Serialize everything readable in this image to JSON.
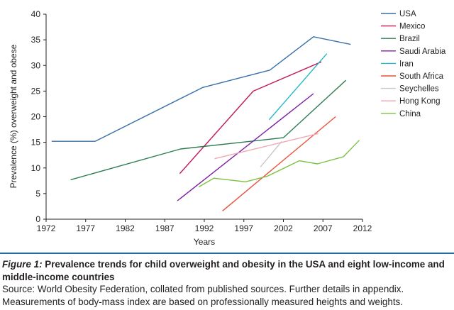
{
  "chart_data": {
    "type": "line",
    "xlabel": "Years",
    "ylabel": "Prevalence (%) overweight and obese",
    "xlim": [
      1972,
      2012
    ],
    "ylim": [
      0,
      40
    ],
    "x_ticks": [
      "1972",
      "1977",
      "1982",
      "1987",
      "1992",
      "1997",
      "2002",
      "2007",
      "2012"
    ],
    "y_ticks": [
      "0",
      "5",
      "10",
      "15",
      "20",
      "25",
      "30",
      "35",
      "40"
    ],
    "grid": false,
    "legend_position": "top-right",
    "series": [
      {
        "name": "USA",
        "color": "#3a6fa8",
        "points": [
          [
            1972.7,
            15.2
          ],
          [
            1978.2,
            15.2
          ],
          [
            1991.8,
            25.7
          ],
          [
            2000.3,
            29.1
          ],
          [
            2005.8,
            35.6
          ],
          [
            2010.5,
            34.1
          ]
        ]
      },
      {
        "name": "Mexico",
        "color": "#c2185b",
        "points": [
          [
            1988.9,
            8.9
          ],
          [
            1998.2,
            25.0
          ],
          [
            2006.8,
            30.7
          ]
        ]
      },
      {
        "name": "Brazil",
        "color": "#2e7d52",
        "points": [
          [
            1975.1,
            7.7
          ],
          [
            1989.0,
            13.7
          ],
          [
            2002.0,
            15.9
          ],
          [
            2009.9,
            27.1
          ]
        ]
      },
      {
        "name": "Saudi Arabia",
        "color": "#7b1fa2",
        "points": [
          [
            1988.6,
            3.6
          ],
          [
            2005.8,
            24.5
          ]
        ]
      },
      {
        "name": "Iran",
        "color": "#26b8c8",
        "points": [
          [
            2000.2,
            19.4
          ],
          [
            2007.5,
            32.3
          ]
        ]
      },
      {
        "name": "South Africa",
        "color": "#e8503a",
        "points": [
          [
            1994.3,
            1.6
          ],
          [
            2008.6,
            20.0
          ]
        ]
      },
      {
        "name": "Seychelles",
        "color": "#c8c8c8",
        "points": [
          [
            1999.1,
            10.2
          ],
          [
            2001.8,
            15.2
          ]
        ]
      },
      {
        "name": "Hong Kong",
        "color": "#f2a6b4",
        "points": [
          [
            1993.3,
            11.8
          ],
          [
            2006.4,
            16.7
          ]
        ]
      },
      {
        "name": "China",
        "color": "#7cc242",
        "points": [
          [
            1991.3,
            6.3
          ],
          [
            1993.2,
            8.0
          ],
          [
            1997.2,
            7.3
          ],
          [
            2000.0,
            8.4
          ],
          [
            2004.0,
            11.4
          ],
          [
            2006.3,
            10.8
          ],
          [
            2009.6,
            12.2
          ],
          [
            2011.6,
            15.4
          ]
        ]
      }
    ]
  },
  "caption": {
    "label": "Figure 1:",
    "title": "Prevalence trends for child overweight and obesity in the USA and eight low-income and middle-income countries",
    "source": "Source: World Obesity Federation, collated from published sources. Further details in appendix. Measurements of body-mass index are based on professionally measured heights and weights."
  }
}
